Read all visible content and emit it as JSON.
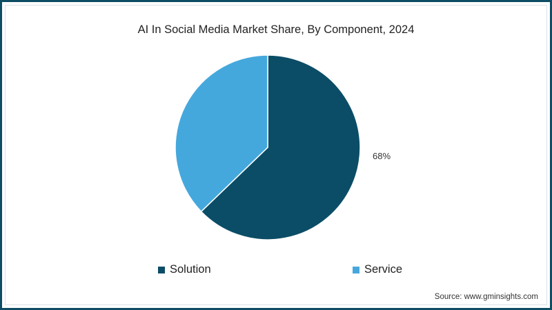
{
  "title": "AI In Social Media Market Share, By Component, 2024",
  "source": "Source: www.gminsights.com",
  "colors": {
    "frame": "#0e4d64",
    "solution": "#0b4d66",
    "service": "#45a8dd"
  },
  "labels": {
    "solution_pct": "68%"
  },
  "legend": [
    {
      "label": "Solution",
      "color": "#0b4d66"
    },
    {
      "label": "Service",
      "color": "#45a8dd"
    }
  ],
  "chart_data": {
    "type": "pie",
    "title": "AI In Social Media Market Share, By Component, 2024",
    "categories": [
      "Solution",
      "Service"
    ],
    "values": [
      68,
      32
    ],
    "data_labels": {
      "Solution": "68%"
    },
    "legend_position": "bottom",
    "colors": [
      "#0b4d66",
      "#45a8dd"
    ]
  }
}
